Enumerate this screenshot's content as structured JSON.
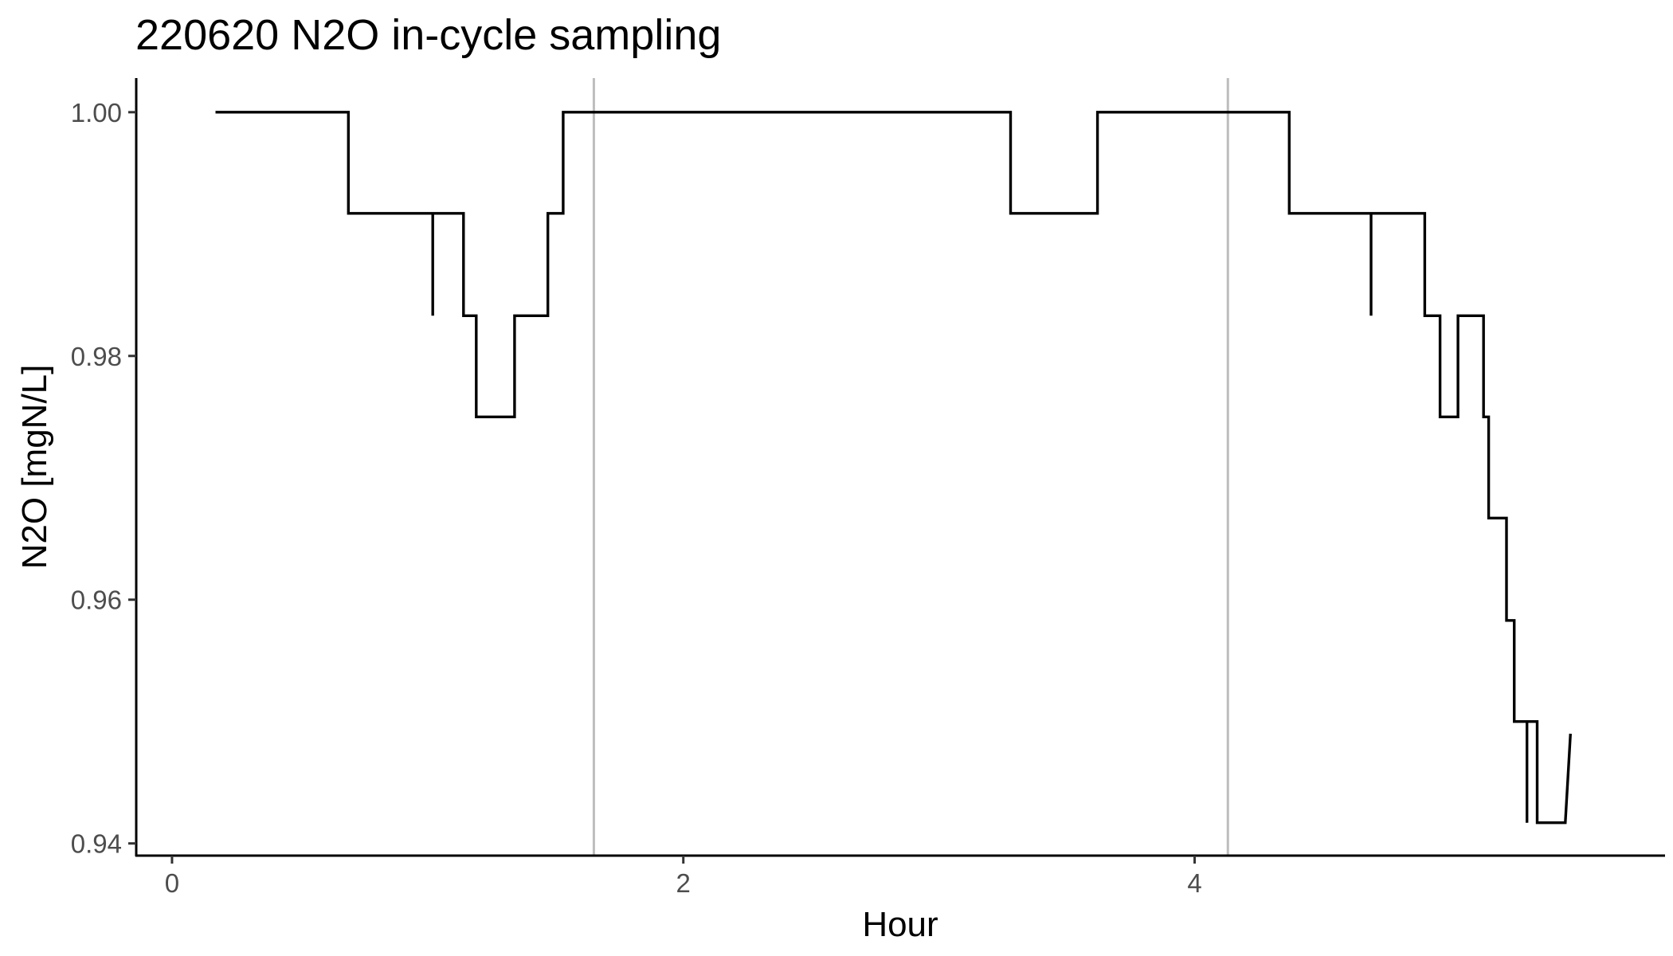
{
  "chart_data": {
    "type": "line",
    "title": "220620 N2O in-cycle sampling",
    "xlabel": "Hour",
    "ylabel": "N2O [mgN/L]",
    "xlim": [
      -0.14,
      5.84
    ],
    "ylim": [
      0.939,
      1.0028
    ],
    "x_ticks": [
      0,
      2,
      4
    ],
    "y_ticks": [
      0.94,
      0.96,
      0.98,
      1.0
    ],
    "x_tick_labels": [
      "0",
      "2",
      "4"
    ],
    "y_tick_labels": [
      "0.94",
      "0.96",
      "0.98",
      "1.00"
    ],
    "grid": false,
    "legend": "none",
    "line_color": "#000000",
    "vline_color": "#bdbdbd",
    "vlines": [
      1.65,
      4.13
    ],
    "series": [
      {
        "values": [
          [
            0.17,
            1.0
          ],
          [
            0.69,
            1.0
          ],
          [
            0.69,
            0.9917
          ],
          [
            1.02,
            0.9917
          ],
          [
            1.02,
            0.9833
          ],
          [
            1.02,
            0.9917
          ],
          [
            1.14,
            0.9917
          ],
          [
            1.14,
            0.9833
          ],
          [
            1.19,
            0.9833
          ],
          [
            1.19,
            0.975
          ],
          [
            1.34,
            0.975
          ],
          [
            1.34,
            0.9833
          ],
          [
            1.47,
            0.9833
          ],
          [
            1.47,
            0.9917
          ],
          [
            1.53,
            0.9917
          ],
          [
            1.53,
            1.0
          ],
          [
            3.28,
            1.0
          ],
          [
            3.28,
            0.9917
          ],
          [
            3.62,
            0.9917
          ],
          [
            3.62,
            1.0
          ],
          [
            4.37,
            1.0
          ],
          [
            4.37,
            0.9917
          ],
          [
            4.69,
            0.9917
          ],
          [
            4.69,
            0.9833
          ],
          [
            4.69,
            0.9917
          ],
          [
            4.9,
            0.9917
          ],
          [
            4.9,
            0.9833
          ],
          [
            4.96,
            0.9833
          ],
          [
            4.96,
            0.975
          ],
          [
            5.03,
            0.975
          ],
          [
            5.03,
            0.9833
          ],
          [
            5.13,
            0.9833
          ],
          [
            5.13,
            0.975
          ],
          [
            5.15,
            0.975
          ],
          [
            5.15,
            0.9667
          ],
          [
            5.22,
            0.9667
          ],
          [
            5.22,
            0.9583
          ],
          [
            5.25,
            0.9583
          ],
          [
            5.25,
            0.95
          ],
          [
            5.3,
            0.95
          ],
          [
            5.3,
            0.9417
          ],
          [
            5.3,
            0.95
          ],
          [
            5.34,
            0.95
          ],
          [
            5.34,
            0.9417
          ],
          [
            5.45,
            0.9417
          ],
          [
            5.47,
            0.949
          ]
        ]
      }
    ]
  }
}
